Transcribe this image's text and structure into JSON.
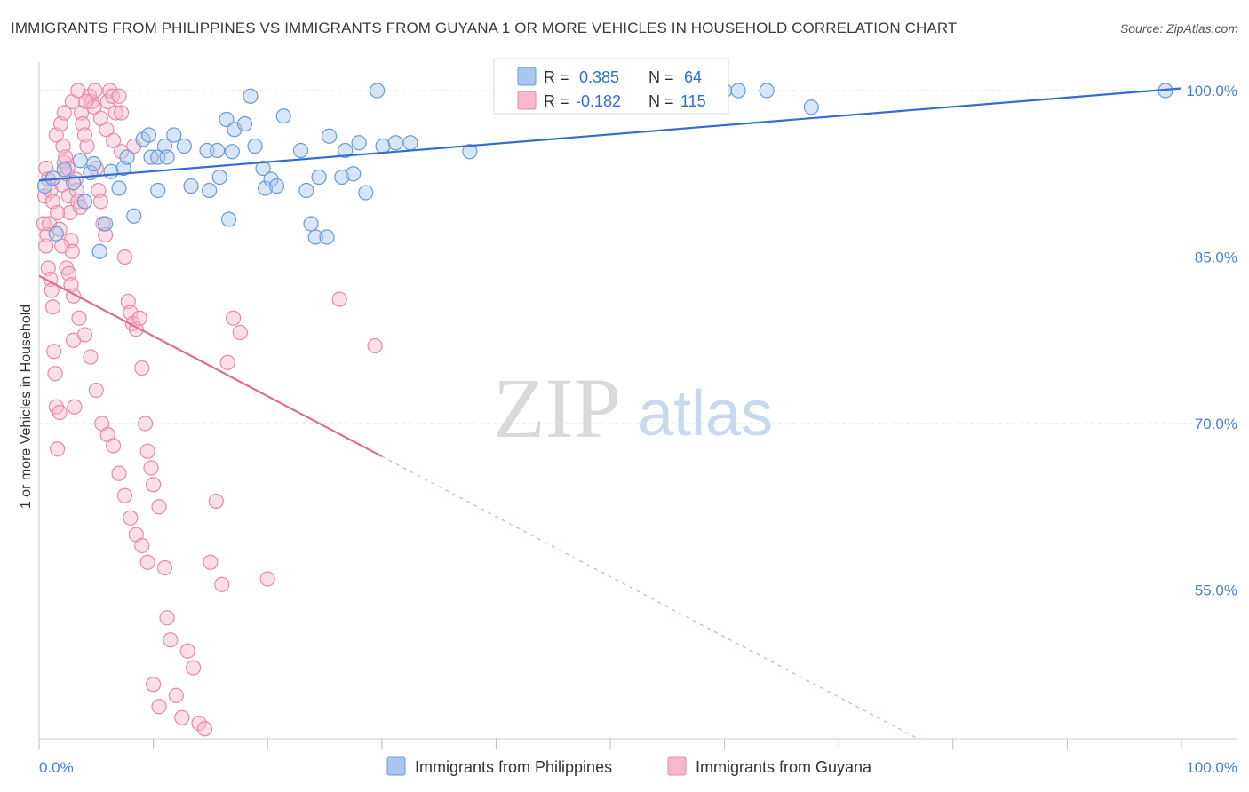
{
  "title": "IMMIGRANTS FROM PHILIPPINES VS IMMIGRANTS FROM GUYANA 1 OR MORE VEHICLES IN HOUSEHOLD CORRELATION CHART",
  "source": "Source: ZipAtlas.com",
  "watermark": {
    "zip": "ZIP",
    "atlas": "atlas"
  },
  "colors": {
    "philippines_fill": "#a9c6ee",
    "philippines_stroke": "#6a9bd8",
    "philippines_line": "#2f6fd0",
    "guyana_fill": "#f6b9cc",
    "guyana_stroke": "#e88aa8",
    "guyana_line": "#e06a94",
    "tick_label": "#4a7fc8",
    "grid": "#dddddd"
  },
  "legend": {
    "rows": [
      {
        "r_label": "R =",
        "r_value": "0.385",
        "n_label": "N =",
        "n_value": "64"
      },
      {
        "r_label": "R =",
        "r_value": "-0.182",
        "n_label": "N =",
        "n_value": "115"
      }
    ]
  },
  "bottom_legend": {
    "philippines": "Immigrants from Philippines",
    "guyana": "Immigrants from Guyana"
  },
  "chart_data": {
    "type": "scatter",
    "ylabel": "1 or more Vehicles in Household",
    "xlabel": "",
    "x_tick_labels": {
      "left": "0.0%",
      "right": "100.0%"
    },
    "y_tick_labels": [
      "100.0%",
      "85.0%",
      "70.0%",
      "55.0%"
    ],
    "y_ticks": [
      100,
      85,
      70,
      55
    ],
    "xlim": [
      0,
      100
    ],
    "ylim": [
      41.6,
      102.4
    ],
    "grid": true,
    "series": [
      {
        "name": "Immigrants from Philippines",
        "color": "#a9c6ee",
        "trend": {
          "x": [
            0,
            100
          ],
          "y": [
            91.9,
            100.2
          ],
          "dashed_from": null
        },
        "points": [
          [
            0.5,
            91.4
          ],
          [
            1.2,
            92.1
          ],
          [
            1.5,
            87.1
          ],
          [
            2.2,
            92.9
          ],
          [
            3.0,
            91.7
          ],
          [
            3.6,
            93.7
          ],
          [
            4.0,
            90.0
          ],
          [
            4.5,
            92.6
          ],
          [
            4.8,
            93.4
          ],
          [
            5.3,
            85.5
          ],
          [
            5.8,
            88.0
          ],
          [
            6.3,
            92.7
          ],
          [
            7.0,
            91.2
          ],
          [
            7.4,
            93.0
          ],
          [
            7.7,
            94.0
          ],
          [
            8.3,
            88.7
          ],
          [
            9.1,
            95.6
          ],
          [
            9.6,
            96.0
          ],
          [
            9.8,
            94.0
          ],
          [
            10.4,
            94.0
          ],
          [
            10.4,
            91.0
          ],
          [
            11.0,
            95.0
          ],
          [
            11.2,
            94.0
          ],
          [
            11.8,
            96.0
          ],
          [
            12.7,
            95.0
          ],
          [
            13.3,
            91.4
          ],
          [
            14.7,
            94.6
          ],
          [
            14.9,
            91.0
          ],
          [
            15.6,
            94.6
          ],
          [
            15.8,
            92.2
          ],
          [
            16.4,
            97.4
          ],
          [
            16.6,
            88.4
          ],
          [
            16.9,
            94.5
          ],
          [
            17.1,
            96.5
          ],
          [
            18.0,
            97.0
          ],
          [
            18.5,
            99.5
          ],
          [
            18.9,
            95.0
          ],
          [
            19.6,
            93.0
          ],
          [
            19.8,
            91.2
          ],
          [
            20.3,
            92.0
          ],
          [
            20.8,
            91.4
          ],
          [
            21.4,
            97.7
          ],
          [
            22.9,
            94.6
          ],
          [
            23.4,
            91.0
          ],
          [
            23.8,
            88.0
          ],
          [
            24.2,
            86.8
          ],
          [
            24.5,
            92.2
          ],
          [
            25.2,
            86.8
          ],
          [
            25.4,
            95.9
          ],
          [
            26.5,
            92.2
          ],
          [
            26.8,
            94.6
          ],
          [
            27.5,
            92.5
          ],
          [
            28.0,
            95.3
          ],
          [
            28.6,
            90.8
          ],
          [
            29.6,
            100.0
          ],
          [
            30.1,
            95.0
          ],
          [
            31.2,
            95.3
          ],
          [
            32.5,
            95.3
          ],
          [
            37.7,
            94.5
          ],
          [
            60.0,
            100.0
          ],
          [
            61.2,
            100.0
          ],
          [
            63.7,
            100.0
          ],
          [
            67.6,
            98.5
          ],
          [
            98.6,
            100.0
          ]
        ]
      },
      {
        "name": "Immigrants from Guyana",
        "color": "#f6b9cc",
        "trend": {
          "x": [
            0,
            100
          ],
          "y": [
            83.3,
            29.1
          ],
          "dashed_from": 30.0
        },
        "points": [
          [
            0.4,
            88.0
          ],
          [
            0.5,
            90.5
          ],
          [
            0.6,
            86.0
          ],
          [
            0.7,
            87.0
          ],
          [
            0.8,
            84.0
          ],
          [
            0.9,
            88.0
          ],
          [
            1.0,
            83.0
          ],
          [
            1.1,
            82.0
          ],
          [
            1.2,
            80.5
          ],
          [
            1.3,
            76.5
          ],
          [
            1.4,
            74.5
          ],
          [
            1.5,
            71.5
          ],
          [
            1.6,
            67.7
          ],
          [
            1.8,
            71.0
          ],
          [
            2.0,
            91.5
          ],
          [
            2.1,
            95.0
          ],
          [
            2.2,
            93.5
          ],
          [
            2.3,
            94.0
          ],
          [
            2.4,
            92.5
          ],
          [
            2.5,
            93.0
          ],
          [
            2.6,
            90.5
          ],
          [
            2.7,
            89.0
          ],
          [
            2.8,
            86.5
          ],
          [
            2.9,
            85.5
          ],
          [
            3.0,
            77.5
          ],
          [
            3.1,
            71.5
          ],
          [
            3.2,
            92.0
          ],
          [
            3.3,
            91.0
          ],
          [
            3.4,
            90.0
          ],
          [
            3.6,
            89.5
          ],
          [
            3.7,
            98.0
          ],
          [
            3.8,
            97.0
          ],
          [
            4.0,
            96.0
          ],
          [
            4.2,
            95.0
          ],
          [
            4.4,
            99.5
          ],
          [
            4.6,
            99.0
          ],
          [
            4.8,
            98.5
          ],
          [
            5.0,
            93.0
          ],
          [
            5.2,
            91.0
          ],
          [
            5.4,
            90.0
          ],
          [
            5.6,
            88.0
          ],
          [
            5.8,
            87.0
          ],
          [
            6.0,
            99.0
          ],
          [
            6.2,
            100.0
          ],
          [
            6.4,
            99.5
          ],
          [
            6.7,
            98.0
          ],
          [
            7.0,
            99.5
          ],
          [
            7.2,
            98.0
          ],
          [
            7.5,
            85.0
          ],
          [
            7.8,
            81.0
          ],
          [
            8.0,
            80.0
          ],
          [
            8.2,
            79.0
          ],
          [
            8.5,
            78.5
          ],
          [
            8.8,
            79.5
          ],
          [
            9.0,
            75.0
          ],
          [
            9.3,
            70.0
          ],
          [
            9.5,
            67.5
          ],
          [
            9.8,
            66.0
          ],
          [
            10.0,
            64.5
          ],
          [
            10.5,
            62.5
          ],
          [
            11.0,
            57.0
          ],
          [
            11.2,
            52.5
          ],
          [
            11.5,
            50.5
          ],
          [
            12.0,
            45.5
          ],
          [
            12.5,
            43.5
          ],
          [
            13.0,
            49.5
          ],
          [
            13.5,
            48.0
          ],
          [
            14.0,
            43.0
          ],
          [
            14.5,
            42.5
          ],
          [
            15.0,
            57.5
          ],
          [
            15.5,
            63.0
          ],
          [
            16.0,
            55.5
          ],
          [
            16.5,
            75.5
          ],
          [
            17.0,
            79.5
          ],
          [
            17.6,
            78.2
          ],
          [
            20.0,
            56.0
          ],
          [
            26.3,
            81.2
          ],
          [
            29.4,
            77.0
          ],
          [
            0.6,
            93.0
          ],
          [
            0.8,
            92.0
          ],
          [
            1.0,
            91.0
          ],
          [
            1.2,
            90.0
          ],
          [
            1.6,
            89.0
          ],
          [
            1.8,
            87.5
          ],
          [
            2.0,
            86.0
          ],
          [
            2.4,
            84.0
          ],
          [
            2.6,
            83.5
          ],
          [
            2.8,
            82.5
          ],
          [
            3.0,
            81.5
          ],
          [
            3.5,
            79.5
          ],
          [
            4.0,
            78.0
          ],
          [
            4.5,
            76.0
          ],
          [
            5.0,
            73.0
          ],
          [
            5.5,
            70.0
          ],
          [
            6.0,
            69.0
          ],
          [
            6.5,
            68.0
          ],
          [
            7.0,
            65.5
          ],
          [
            7.5,
            63.5
          ],
          [
            8.0,
            61.5
          ],
          [
            8.5,
            60.0
          ],
          [
            9.0,
            59.0
          ],
          [
            9.5,
            57.5
          ],
          [
            10.0,
            46.5
          ],
          [
            10.5,
            44.5
          ],
          [
            1.5,
            96.0
          ],
          [
            1.9,
            97.0
          ],
          [
            2.2,
            98.0
          ],
          [
            2.9,
            99.0
          ],
          [
            3.4,
            100.0
          ],
          [
            4.1,
            99.0
          ],
          [
            4.9,
            100.0
          ],
          [
            5.4,
            97.5
          ],
          [
            5.9,
            96.5
          ],
          [
            6.5,
            95.5
          ],
          [
            7.2,
            94.5
          ],
          [
            8.3,
            95.0
          ]
        ]
      }
    ]
  }
}
